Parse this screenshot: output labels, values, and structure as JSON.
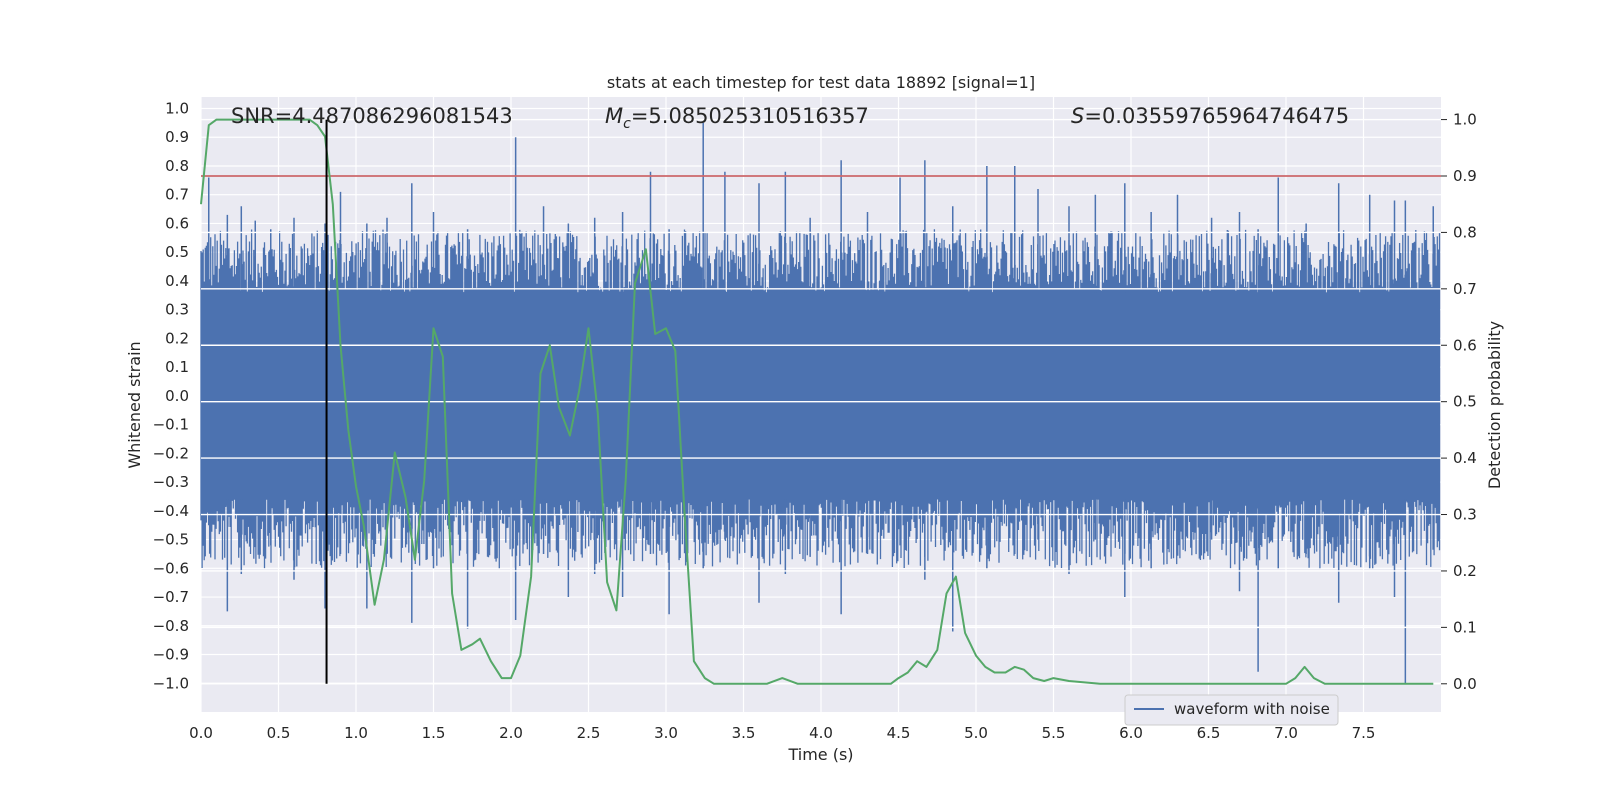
{
  "chart_data": {
    "type": "line",
    "title": "stats at each timestep for test data 18892 [signal=1]",
    "xlabel": "Time (s)",
    "ylabel": "Whitened strain",
    "y2label": "Detection probability",
    "xlim": [
      0.0,
      8.0
    ],
    "ylim": [
      -1.1,
      1.04
    ],
    "y2lim": [
      -0.05,
      1.04
    ],
    "xticks": [
      "0.0",
      "0.5",
      "1.0",
      "1.5",
      "2.0",
      "2.5",
      "3.0",
      "3.5",
      "4.0",
      "4.5",
      "5.0",
      "5.5",
      "6.0",
      "6.5",
      "7.0",
      "7.5"
    ],
    "yticks": [
      "1.0",
      "0.9",
      "0.8",
      "0.7",
      "0.6",
      "0.5",
      "0.4",
      "0.3",
      "0.2",
      "0.1",
      "0.0",
      "-0.1",
      "-0.2",
      "-0.3",
      "-0.4",
      "-0.5",
      "-0.6",
      "-0.7",
      "-0.8",
      "-0.9",
      "-1.0"
    ],
    "y2ticks": [
      "1.0",
      "0.9",
      "0.8",
      "0.7",
      "0.6",
      "0.5",
      "0.4",
      "0.3",
      "0.2",
      "0.1",
      "0.0"
    ],
    "annotations": {
      "snr": "SNR=4.487086296081543",
      "mc_symbol": "M",
      "mc_sub": "c",
      "mc_value": "=5.085025310516357",
      "s_symbol": "S",
      "s_value": "=0.03559765964746475"
    },
    "grid": true,
    "legend": {
      "position": "lower right",
      "entries": [
        "waveform with noise"
      ]
    },
    "series": [
      {
        "name": "waveform with noise",
        "axis": "left",
        "color": "#4c72b0",
        "band_upper": 0.36,
        "band_lower": -0.36,
        "spikes": [
          [
            0.05,
            0.76,
            -0.45
          ],
          [
            0.17,
            0.63,
            -0.75
          ],
          [
            0.26,
            0.66,
            -0.62
          ],
          [
            0.35,
            0.61,
            -0.44
          ],
          [
            0.45,
            0.58,
            -0.52
          ],
          [
            0.6,
            0.62,
            -0.64
          ],
          [
            0.8,
            0.6,
            -0.74
          ],
          [
            0.9,
            0.71,
            -0.55
          ],
          [
            1.07,
            0.6,
            -0.74
          ],
          [
            1.2,
            0.62,
            -0.55
          ],
          [
            1.36,
            0.74,
            -0.79
          ],
          [
            1.5,
            0.64,
            -0.6
          ],
          [
            1.72,
            0.58,
            -0.81
          ],
          [
            2.03,
            0.9,
            -0.78
          ],
          [
            2.21,
            0.66,
            -0.55
          ],
          [
            2.37,
            0.6,
            -0.7
          ],
          [
            2.54,
            0.62,
            -0.62
          ],
          [
            2.72,
            0.64,
            -0.7
          ],
          [
            2.9,
            0.78,
            -0.55
          ],
          [
            3.02,
            0.58,
            -0.76
          ],
          [
            3.24,
            0.95,
            -0.6
          ],
          [
            3.38,
            0.78,
            -0.5
          ],
          [
            3.6,
            0.74,
            -0.72
          ],
          [
            3.77,
            0.78,
            -0.62
          ],
          [
            3.93,
            0.62,
            -0.56
          ],
          [
            4.13,
            0.82,
            -0.76
          ],
          [
            4.3,
            0.64,
            -0.55
          ],
          [
            4.51,
            0.76,
            -0.52
          ],
          [
            4.67,
            0.82,
            -0.64
          ],
          [
            4.85,
            0.66,
            -0.82
          ],
          [
            5.07,
            0.8,
            -0.6
          ],
          [
            5.25,
            0.8,
            -0.55
          ],
          [
            5.4,
            0.72,
            -0.5
          ],
          [
            5.6,
            0.66,
            -0.62
          ],
          [
            5.77,
            0.7,
            -0.5
          ],
          [
            5.96,
            0.74,
            -0.7
          ],
          [
            6.13,
            0.64,
            -0.6
          ],
          [
            6.3,
            0.7,
            -0.55
          ],
          [
            6.52,
            0.62,
            -0.5
          ],
          [
            6.7,
            0.64,
            -0.68
          ],
          [
            6.82,
            0.58,
            -0.96
          ],
          [
            6.95,
            0.76,
            -0.6
          ],
          [
            7.13,
            0.6,
            -0.55
          ],
          [
            7.34,
            0.74,
            -0.72
          ],
          [
            7.54,
            0.7,
            -0.6
          ],
          [
            7.7,
            0.68,
            -0.7
          ],
          [
            7.77,
            0.68,
            -1.0
          ],
          [
            7.95,
            0.66,
            -0.5
          ]
        ]
      },
      {
        "name": "",
        "axis": "right",
        "color": "#55a868",
        "x": [
          0.0,
          0.05,
          0.1,
          0.2,
          0.3,
          0.4,
          0.5,
          0.6,
          0.7,
          0.75,
          0.8,
          0.85,
          0.9,
          0.95,
          1.0,
          1.05,
          1.12,
          1.18,
          1.25,
          1.32,
          1.38,
          1.44,
          1.5,
          1.56,
          1.62,
          1.68,
          1.75,
          1.8,
          1.87,
          1.94,
          2.0,
          2.06,
          2.13,
          2.19,
          2.25,
          2.31,
          2.38,
          2.44,
          2.5,
          2.56,
          2.62,
          2.68,
          2.74,
          2.8,
          2.87,
          2.93,
          3.0,
          3.06,
          3.12,
          3.18,
          3.25,
          3.31,
          3.4,
          3.55,
          3.65,
          3.75,
          3.85,
          4.0,
          4.15,
          4.3,
          4.4,
          4.45,
          4.5,
          4.56,
          4.62,
          4.68,
          4.75,
          4.81,
          4.87,
          4.93,
          5.0,
          5.06,
          5.12,
          5.19,
          5.25,
          5.31,
          5.37,
          5.44,
          5.5,
          5.6,
          5.8,
          6.0,
          6.5,
          7.0,
          7.06,
          7.12,
          7.18,
          7.25,
          7.35,
          7.5,
          7.7,
          7.95
        ],
        "values": [
          0.85,
          0.99,
          1.0,
          1.0,
          1.0,
          1.0,
          1.0,
          1.0,
          1.0,
          0.99,
          0.97,
          0.85,
          0.6,
          0.45,
          0.35,
          0.28,
          0.14,
          0.22,
          0.41,
          0.33,
          0.22,
          0.36,
          0.63,
          0.58,
          0.16,
          0.06,
          0.07,
          0.08,
          0.04,
          0.01,
          0.01,
          0.05,
          0.19,
          0.55,
          0.6,
          0.49,
          0.44,
          0.52,
          0.63,
          0.48,
          0.18,
          0.13,
          0.36,
          0.71,
          0.77,
          0.62,
          0.63,
          0.59,
          0.3,
          0.04,
          0.01,
          0.0,
          0.0,
          0.0,
          0.0,
          0.01,
          0.0,
          0.0,
          0.0,
          0.0,
          0.0,
          0.0,
          0.01,
          0.02,
          0.04,
          0.03,
          0.06,
          0.16,
          0.19,
          0.09,
          0.05,
          0.03,
          0.02,
          0.02,
          0.03,
          0.025,
          0.01,
          0.005,
          0.01,
          0.005,
          0.0,
          0.0,
          0.0,
          0.0,
          0.01,
          0.03,
          0.01,
          0.0,
          0.0,
          0.0,
          0.0,
          0.0
        ]
      }
    ],
    "threshold": {
      "axis": "right",
      "value": 0.9,
      "color": "#c44e52"
    },
    "vline": {
      "x": 0.81,
      "color": "#000000"
    }
  }
}
